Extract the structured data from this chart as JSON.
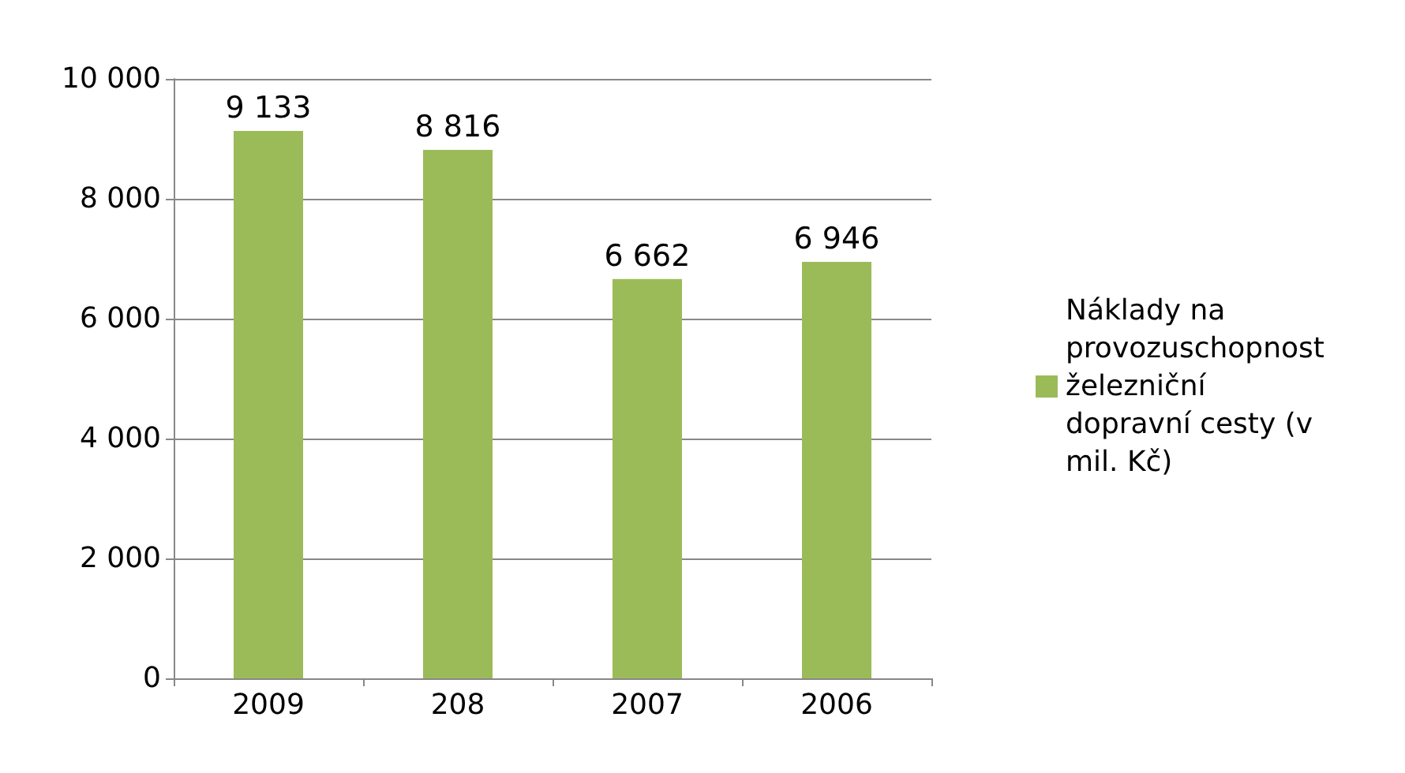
{
  "chart_data": {
    "type": "bar",
    "categories": [
      "2009",
      "208",
      "2007",
      "2006"
    ],
    "series": [
      {
        "name": "Náklady na provozuschopnost železniční dopravní cesty (v mil. Kč)",
        "color": "#9bbb59",
        "values": [
          9133,
          8816,
          6662,
          6946
        ],
        "value_labels": [
          "9 133",
          "8 816",
          "6 662",
          "6 946"
        ]
      }
    ],
    "ylim": [
      0,
      10000
    ],
    "yticks": [
      0,
      {
        "value": 2000,
        "label": "2 000"
      },
      {
        "value": 4000,
        "label": "4 000"
      },
      {
        "value": 6000,
        "label": "6 000"
      },
      {
        "value": 8000,
        "label": "8 000"
      },
      {
        "value": 10000,
        "label": "10 000"
      }
    ],
    "grid": "y",
    "legend": "right"
  }
}
